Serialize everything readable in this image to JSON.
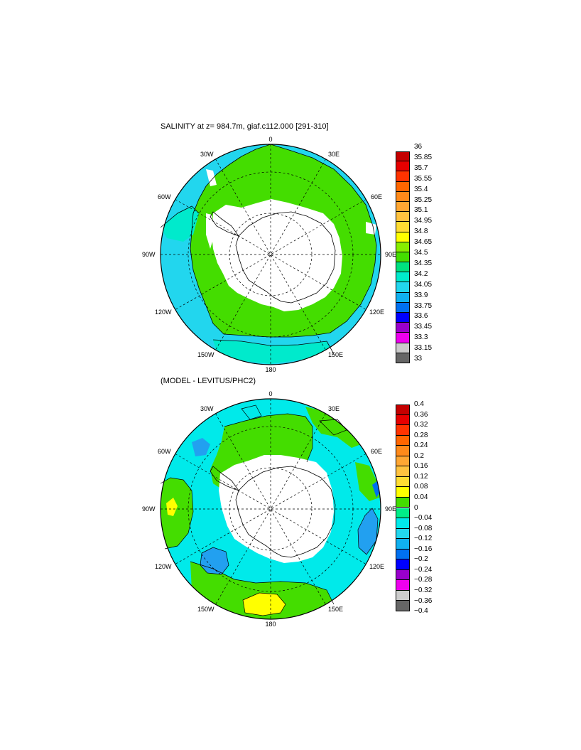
{
  "maps": [
    {
      "id": "salinity",
      "title": "SALINITY at z= 984.7m, giaf.c112.000 [291-310]",
      "meridian_labels": [
        "0",
        "30E",
        "60E",
        "90E",
        "120E",
        "150E",
        "180",
        "150W",
        "120W",
        "90W",
        "60W",
        "30W"
      ],
      "colorbar": {
        "labels": [
          "36",
          "35.85",
          "35.7",
          "35.55",
          "35.4",
          "35.25",
          "35.1",
          "34.95",
          "34.8",
          "34.65",
          "34.5",
          "34.35",
          "34.2",
          "34.05",
          "33.9",
          "33.75",
          "33.6",
          "33.45",
          "33.3",
          "33.15",
          "33"
        ],
        "colors": [
          "#c40000",
          "#e60000",
          "#ff3300",
          "#ff6600",
          "#ff8a1a",
          "#ffa733",
          "#ffc340",
          "#ffdd33",
          "#ffff00",
          "#88ee00",
          "#44dd00",
          "#00e080",
          "#00eacc",
          "#22d6ee",
          "#10b0f0",
          "#0070f0",
          "#0000ff",
          "#9900cc",
          "#ee00ee",
          "#cccccc",
          "#666666"
        ]
      },
      "dominant_colors": {
        "outer_ring": "#22d6ee",
        "inner_band": "#44dd00",
        "land": "#ffffff",
        "coast_ice": "#ffffff"
      }
    },
    {
      "id": "difference",
      "title": "(MODEL - LEVITUS/PHC2)",
      "meridian_labels": [
        "0",
        "30E",
        "60E",
        "90E",
        "120E",
        "150E",
        "180",
        "150W",
        "120W",
        "90W",
        "60W",
        "30W"
      ],
      "colorbar": {
        "labels": [
          "0.4",
          "0.36",
          "0.32",
          "0.28",
          "0.24",
          "0.2",
          "0.16",
          "0.12",
          "0.08",
          "0.04",
          "0",
          "−0.04",
          "−0.08",
          "−0.12",
          "−0.16",
          "−0.2",
          "−0.24",
          "−0.28",
          "−0.32",
          "−0.36",
          "−0.4"
        ],
        "colors": [
          "#c40000",
          "#e60000",
          "#ff3300",
          "#ff6600",
          "#ff8a1a",
          "#ffa733",
          "#ffc340",
          "#ffdd33",
          "#ffff00",
          "#44dd00",
          "#00ee88",
          "#00eaea",
          "#22d6ee",
          "#10b0f0",
          "#0070f0",
          "#0000ff",
          "#9900cc",
          "#ee00ee",
          "#cccccc",
          "#666666"
        ]
      },
      "dominant_colors": {
        "background": "#00eaea",
        "positive": "#44dd00",
        "max_positive": "#ffff00",
        "negative": "#22a0f0",
        "land": "#ffffff"
      }
    }
  ]
}
